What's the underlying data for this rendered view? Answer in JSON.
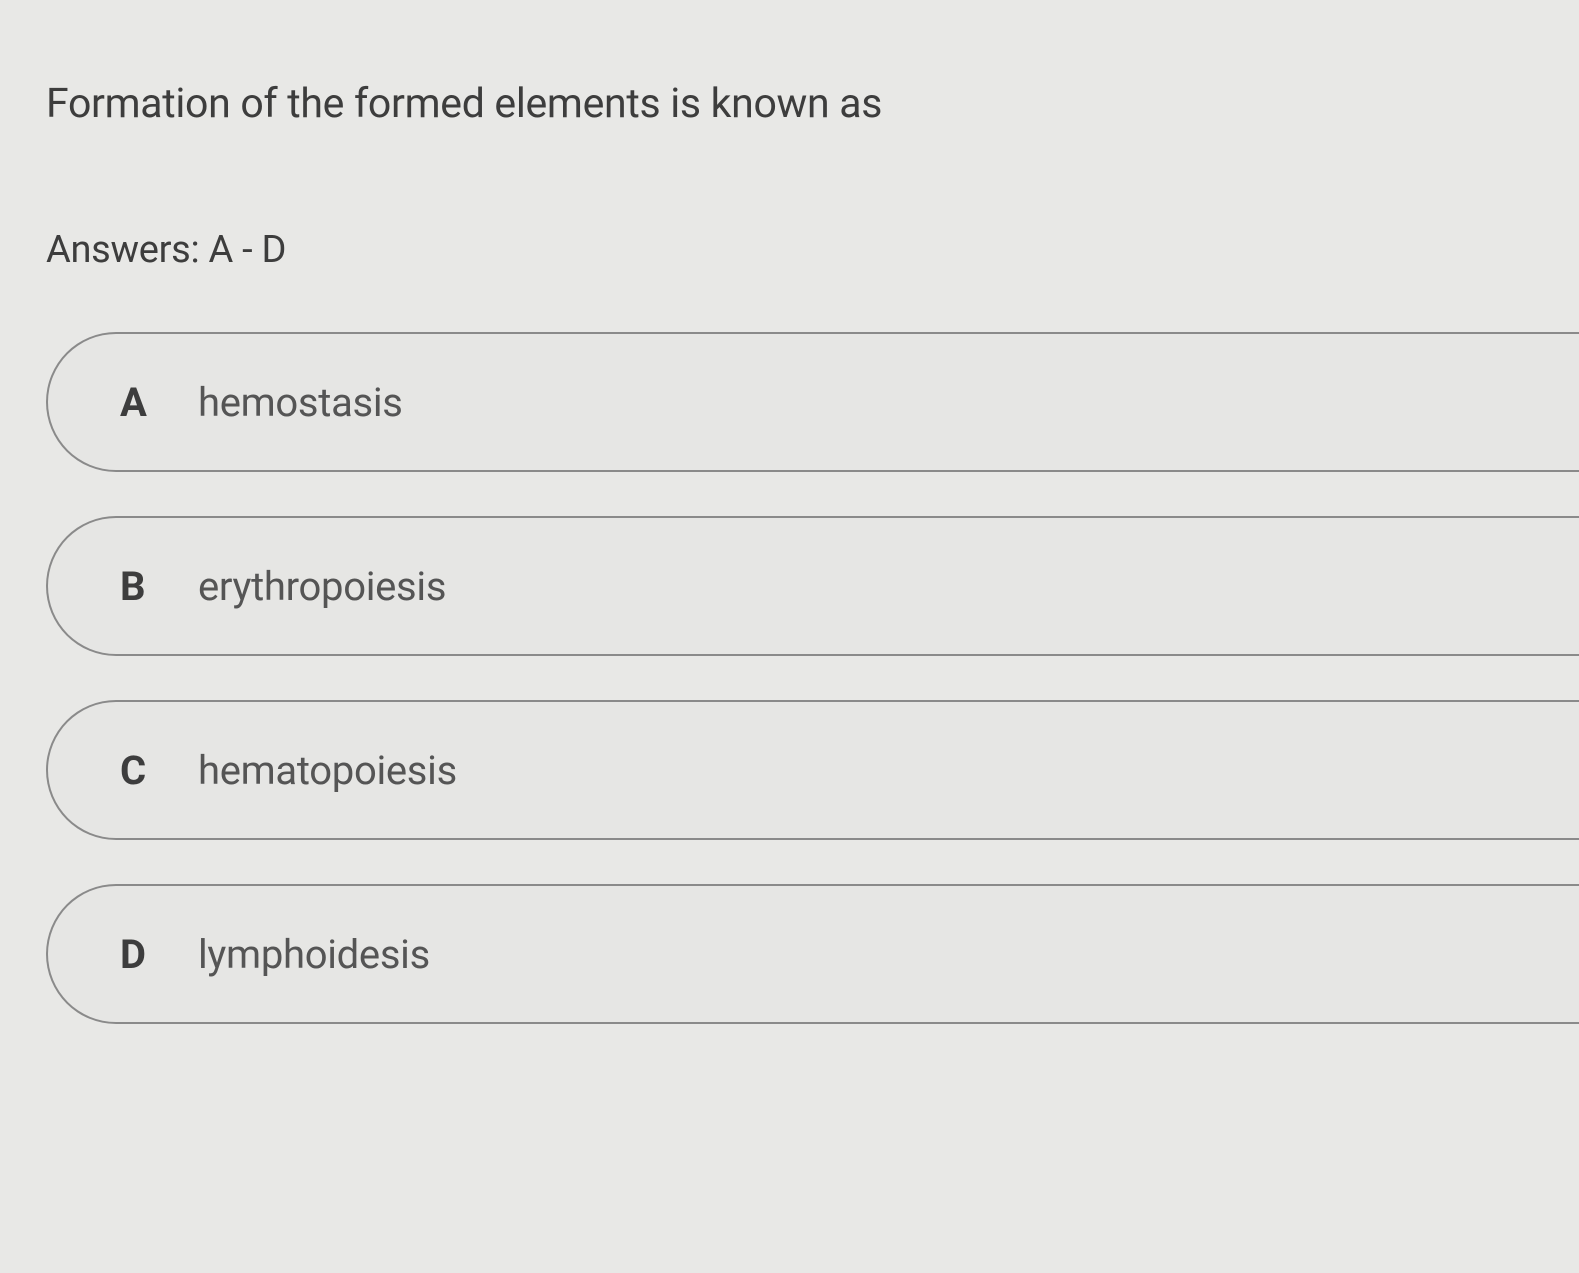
{
  "question": {
    "text": "Formation of the formed elements is known as",
    "answers_label": "Answers: A - D"
  },
  "options": [
    {
      "letter": "A",
      "text": "hemostasis"
    },
    {
      "letter": "B",
      "text": "erythropoiesis"
    },
    {
      "letter": "C",
      "text": "hematopoiesis"
    },
    {
      "letter": "D",
      "text": "lymphoidesis"
    }
  ],
  "styling": {
    "background_color": "#e8e8e6",
    "option_background": "#e6e6e4",
    "option_border_color": "#8a8a8a",
    "option_border_radius": 70,
    "text_color": "#3d3d3d",
    "option_text_color": "#555555",
    "question_fontsize": 41,
    "answers_label_fontsize": 38,
    "option_letter_fontsize": 40,
    "option_text_fontsize": 40
  }
}
